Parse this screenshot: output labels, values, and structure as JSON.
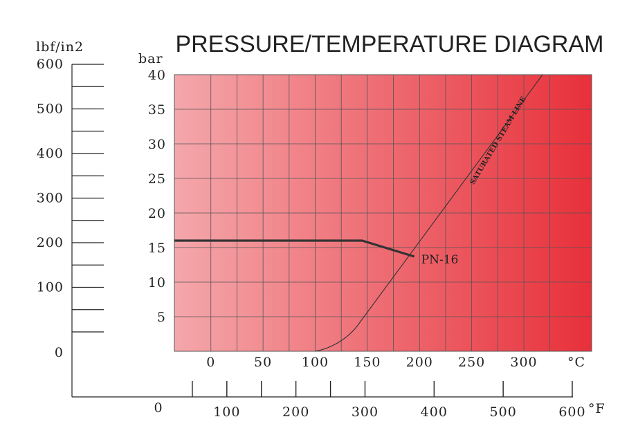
{
  "chart_data": {
    "type": "line",
    "title": "PRESSURE/TEMPERATURE DIAGRAM",
    "axes": {
      "pressure_bar": {
        "unit": "bar",
        "range": [
          0,
          40
        ],
        "ticks": [
          5,
          10,
          15,
          20,
          25,
          30,
          35,
          40
        ],
        "tick_labels": [
          "5",
          "10",
          "15",
          "20",
          "25",
          "30",
          "35",
          "40"
        ]
      },
      "pressure_psi": {
        "unit": "lbf/in2",
        "range": [
          0,
          600
        ],
        "labeled_ticks": [
          0,
          100,
          200,
          300,
          400,
          500,
          600
        ],
        "tick_labels": [
          "0",
          "100",
          "200",
          "300",
          "400",
          "500",
          "600"
        ],
        "minor_ticks": [
          50,
          150,
          250,
          350,
          450,
          550
        ]
      },
      "temperature_c": {
        "unit": "°C",
        "range": [
          -35,
          365
        ],
        "ticks": [
          0,
          50,
          100,
          150,
          200,
          250,
          300
        ],
        "tick_labels": [
          "0",
          "50",
          "100",
          "150",
          "200",
          "250",
          "300"
        ]
      },
      "temperature_f": {
        "unit": "°F",
        "labeled_ticks": [
          0,
          100,
          200,
          300,
          400,
          500,
          600
        ],
        "tick_labels": [
          "0",
          "100",
          "200",
          "300",
          "400",
          "500",
          "600"
        ],
        "tick_marks": [
          50,
          100,
          150,
          200,
          250,
          300,
          400,
          500,
          600
        ]
      }
    },
    "grid": true,
    "background": {
      "from": "#f4a7ab",
      "to": "#e8303a",
      "direction": "left-to-right"
    },
    "series": [
      {
        "name": "PN-16",
        "color": "#333333",
        "x": [
          -35,
          145,
          195
        ],
        "y": [
          16,
          16,
          13.7
        ]
      },
      {
        "name": "SATURATED STEAM LINE",
        "color": "#333333",
        "x": [
          100,
          115,
          130,
          140,
          318
        ],
        "y": [
          0,
          0.4,
          1.7,
          3.6,
          40
        ]
      }
    ]
  }
}
